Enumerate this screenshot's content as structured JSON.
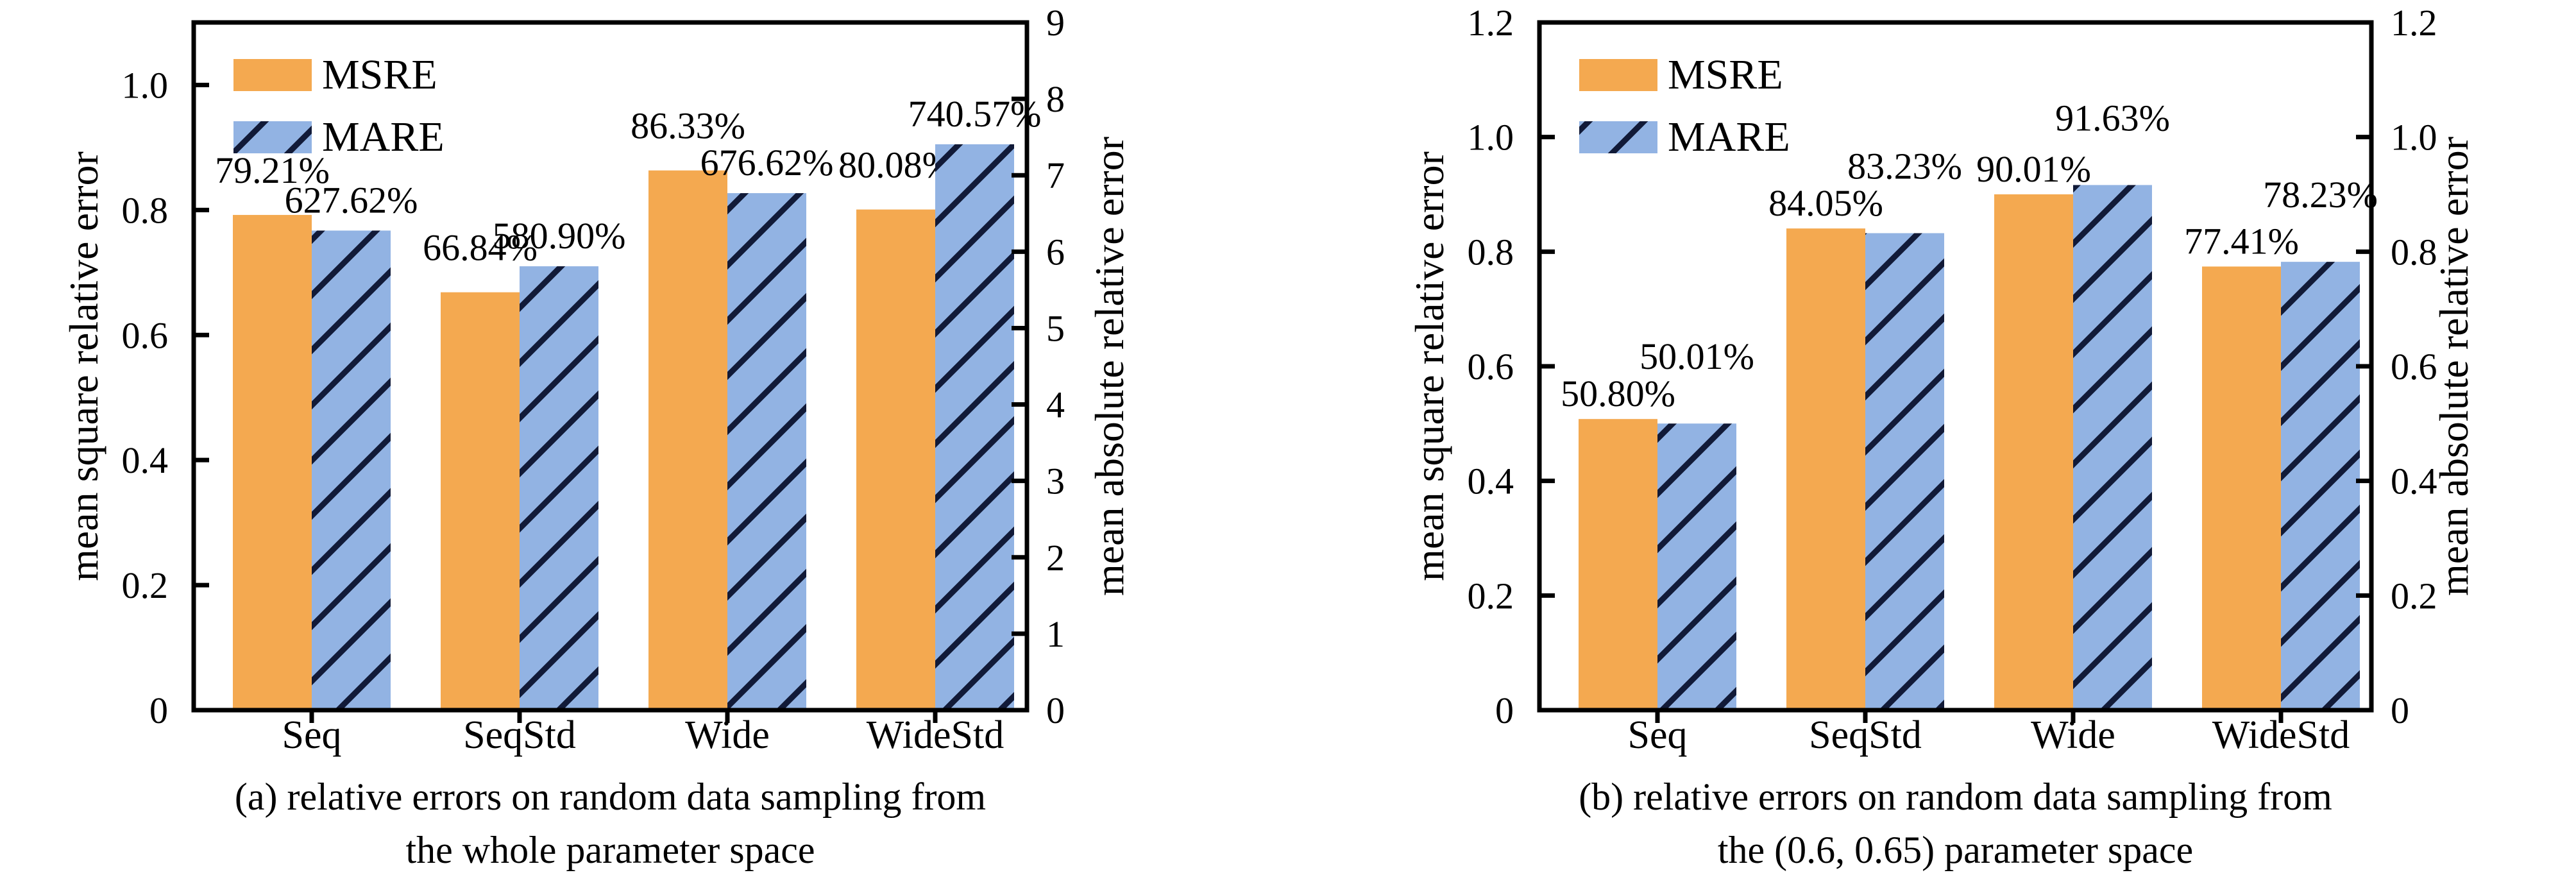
{
  "figure": {
    "colors": {
      "msre_fill": "#F4A950",
      "mare_fill": "#92B3E3",
      "hatch_line": "#111A38",
      "axis_line": "#000000",
      "text": "#000000",
      "background": "#FFFFFF"
    },
    "legend_labels": [
      "MSRE",
      "MARE"
    ]
  },
  "chart_data": [
    {
      "id": "a",
      "type": "bar",
      "categories": [
        "Seq",
        "SeqStd",
        "Wide",
        "WideStd"
      ],
      "series": [
        {
          "name": "MSRE",
          "axis": "left",
          "values_pct": [
            79.21,
            66.84,
            86.33,
            80.08
          ],
          "labels": [
            "79.21%",
            "66.84%",
            "86.33%",
            "80.08%"
          ]
        },
        {
          "name": "MARE",
          "axis": "right",
          "values_pct": [
            627.62,
            580.9,
            676.62,
            740.57
          ],
          "labels": [
            "627.62%",
            "580.90%",
            "676.62%",
            "740.57%"
          ]
        }
      ],
      "left_axis": {
        "title": "mean square relative error",
        "tick_values": [
          0,
          0.2,
          0.4,
          0.6,
          0.8,
          1.0
        ],
        "tick_labels": [
          "0",
          "0.2",
          "0.4",
          "0.6",
          "0.8",
          "1.0"
        ],
        "range": [
          0,
          1.1
        ]
      },
      "right_axis": {
        "title": "mean absolute relative error",
        "tick_values": [
          0,
          1,
          2,
          3,
          4,
          5,
          6,
          7,
          8,
          9
        ],
        "tick_labels": [
          "0",
          "1",
          "2",
          "3",
          "4",
          "5",
          "6",
          "7",
          "8",
          "9"
        ],
        "range": [
          0,
          9
        ]
      },
      "legend": [
        "MSRE",
        "MARE"
      ],
      "grid": false,
      "legend_position": "upper left",
      "title_caption": [
        "(a) relative errors on random data sampling from",
        "the whole parameter space"
      ]
    },
    {
      "id": "b",
      "type": "bar",
      "categories": [
        "Seq",
        "SeqStd",
        "Wide",
        "WideStd"
      ],
      "series": [
        {
          "name": "MSRE",
          "axis": "left",
          "values_pct": [
            50.8,
            84.05,
            90.01,
            77.41
          ],
          "labels": [
            "50.80%",
            "84.05%",
            "90.01%",
            "77.41%"
          ]
        },
        {
          "name": "MARE",
          "axis": "right",
          "values_pct": [
            50.01,
            83.23,
            91.63,
            78.23
          ],
          "labels": [
            "50.01%",
            "83.23%",
            "91.63%",
            "78.23%"
          ]
        }
      ],
      "left_axis": {
        "title": "mean square relative error",
        "tick_values": [
          0,
          0.2,
          0.4,
          0.6,
          0.8,
          1.0,
          1.2
        ],
        "tick_labels": [
          "0",
          "0.2",
          "0.4",
          "0.6",
          "0.8",
          "1.0",
          "1.2"
        ],
        "range": [
          0,
          1.2
        ]
      },
      "right_axis": {
        "title": "mean absolute relative error",
        "tick_values": [
          0,
          0.2,
          0.4,
          0.6,
          0.8,
          1.0,
          1.2
        ],
        "tick_labels": [
          "0",
          "0.2",
          "0.4",
          "0.6",
          "0.8",
          "1.0",
          "1.2"
        ],
        "range": [
          0,
          1.2
        ]
      },
      "legend": [
        "MSRE",
        "MARE"
      ],
      "grid": false,
      "legend_position": "upper left",
      "title_caption": [
        "(b) relative errors on random data sampling from",
        "the (0.6, 0.65) parameter space"
      ]
    }
  ]
}
